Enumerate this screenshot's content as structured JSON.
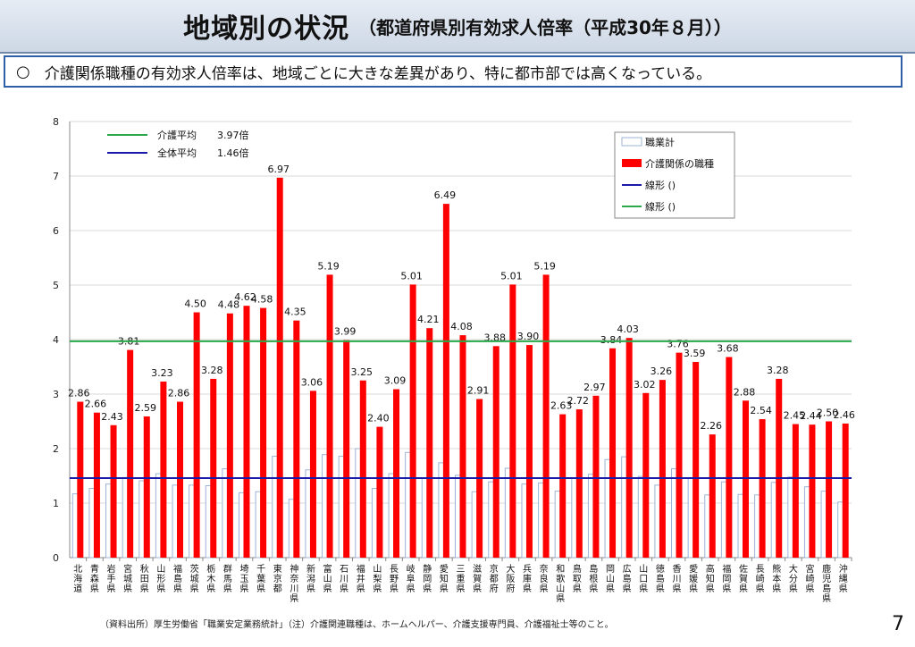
{
  "header": {
    "title": "地域別の状況",
    "subtitle": "（都道府県別有効求人倍率（平成30年８月））"
  },
  "summary": {
    "bullet": "○",
    "text": "介護関係職種の有効求人倍率は、地域ごとに大きな差異があり、特に都市部では高くなっている。"
  },
  "footnote": "（資料出所）厚生労働省「職業安定業務統計」（注）介護関連職種は、ホームヘルパー、介護支援専門員、介護福祉士等のこと。",
  "page_number": "7",
  "colors": {
    "care_bar": "#ff0000",
    "all_bar_fill": "#ffffff",
    "all_bar_stroke": "#9db3d6",
    "care_avg_line": "#2aa84a",
    "all_avg_line": "#1a1aa8",
    "grid": "#d9d9d9"
  },
  "chart_data": {
    "type": "bar",
    "categories": [
      "北海道",
      "青森県",
      "岩手県",
      "宮城県",
      "秋田県",
      "山形県",
      "福島県",
      "茨城県",
      "栃木県",
      "群馬県",
      "埼玉県",
      "千葉県",
      "東京都",
      "神奈川県",
      "新潟県",
      "富山県",
      "石川県",
      "福井県",
      "山梨県",
      "長野県",
      "岐阜県",
      "静岡県",
      "愛知県",
      "三重県",
      "滋賀県",
      "京都府",
      "大阪府",
      "兵庫県",
      "奈良県",
      "和歌山県",
      "鳥取県",
      "島根県",
      "岡山県",
      "広島県",
      "山口県",
      "徳島県",
      "香川県",
      "愛媛県",
      "高知県",
      "福岡県",
      "佐賀県",
      "長崎県",
      "熊本県",
      "大分県",
      "宮崎県",
      "鹿児島県",
      "沖縄県"
    ],
    "series": [
      {
        "name": "職業計",
        "values": [
          1.17,
          1.27,
          1.35,
          1.47,
          1.41,
          1.54,
          1.33,
          1.33,
          1.32,
          1.63,
          1.19,
          1.21,
          1.86,
          1.07,
          1.61,
          1.89,
          1.86,
          2.0,
          1.27,
          1.54,
          1.93,
          1.45,
          1.74,
          1.51,
          1.21,
          1.39,
          1.64,
          1.35,
          1.37,
          1.22,
          1.45,
          1.53,
          1.8,
          1.85,
          1.49,
          1.33,
          1.63,
          1.46,
          1.15,
          1.39,
          1.16,
          1.15,
          1.38,
          1.48,
          1.3,
          1.22,
          1.02
        ]
      },
      {
        "name": "介護関係の職種",
        "values": [
          2.86,
          2.66,
          2.43,
          3.81,
          2.59,
          3.23,
          2.86,
          4.5,
          3.28,
          4.48,
          4.62,
          4.58,
          6.97,
          4.35,
          3.06,
          5.19,
          3.99,
          3.25,
          2.4,
          3.09,
          5.01,
          4.21,
          6.49,
          4.08,
          2.91,
          3.88,
          5.01,
          3.9,
          5.19,
          2.63,
          2.72,
          2.97,
          3.84,
          4.03,
          3.02,
          3.26,
          3.76,
          3.59,
          2.26,
          3.68,
          2.88,
          2.54,
          3.28,
          2.45,
          2.44,
          2.5,
          2.46
        ]
      }
    ],
    "labels": [
      "2.86",
      "2.66",
      "2.43",
      "3.81",
      "2.59",
      "3.23",
      "2.86",
      "4.50",
      "3.28",
      "4.48",
      "4.62",
      "4.58",
      "6.97",
      "4.35",
      "3.06",
      "5.19",
      "3.99",
      "3.25",
      "2.40",
      "3.09",
      "5.01",
      "4.21",
      "6.49",
      "4.08",
      "2.91",
      "3.88",
      "5.01",
      "3.90",
      "5.19",
      "2.63",
      "2.72",
      "2.97",
      "3.84",
      "4.03",
      "3.02",
      "3.26",
      "3.76",
      "3.59",
      "2.26",
      "3.68",
      "2.88",
      "2.54",
      "3.28",
      "2.45",
      "2.44",
      "2.50",
      "2.46"
    ],
    "lines": [
      {
        "name": "介護平均",
        "value": 3.97,
        "value_label": "3.97倍"
      },
      {
        "name": "全体平均",
        "value": 1.46,
        "value_label": "1.46倍"
      }
    ],
    "legend": [
      "職業計",
      "介護関係の職種",
      "線形 ()",
      "線形 ()"
    ],
    "legend_position": "top-right",
    "yticks": [
      "0",
      "1",
      "2",
      "3",
      "4",
      "5",
      "6",
      "7",
      "8"
    ],
    "ylim": [
      0,
      8
    ],
    "grid": true
  }
}
